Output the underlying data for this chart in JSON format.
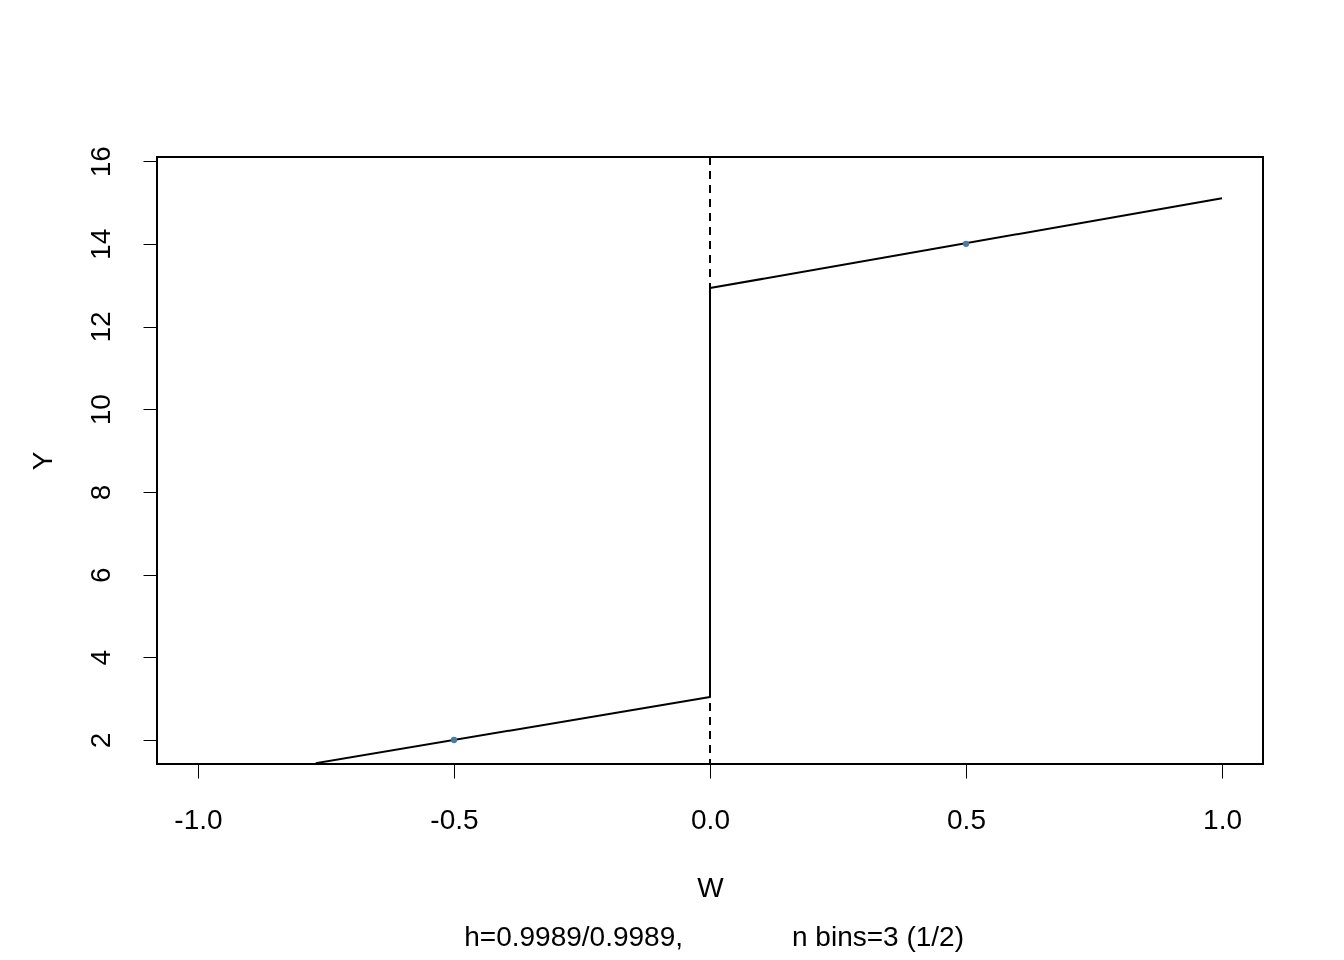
{
  "chart_data": {
    "type": "line",
    "xlabel": "W",
    "ylabel": "Y",
    "xlim": [
      -1.08,
      1.08
    ],
    "xticks": [
      {
        "value": -1,
        "label": "-1.0"
      },
      {
        "value": -0.5,
        "label": "-0.5"
      },
      {
        "value": 0,
        "label": "0.0"
      },
      {
        "value": 0.5,
        "label": "0.5"
      },
      {
        "value": 1,
        "label": "1.0"
      }
    ],
    "ylim": [
      1.42,
      16.1
    ],
    "yticks": [
      2,
      4,
      6,
      8,
      10,
      12,
      14,
      16
    ],
    "grid": false,
    "series": [
      {
        "color": "#000000",
        "x": [
          -0.77,
          0,
          0,
          1
        ],
        "values": [
          1.44,
          3.04,
          12.93,
          15.1
        ]
      },
      {
        "type": "scatter",
        "color": "#4a7ba7",
        "x": [
          -0.5,
          0.5
        ],
        "values": [
          2,
          14
        ]
      }
    ],
    "ref_lines": [
      {
        "axis": "x",
        "value": 0,
        "color": "#000000",
        "line_style": "dashed"
      }
    ],
    "annotations": [
      "h=0.9989/0.9989,",
      "n bins=3 (1/2)"
    ]
  }
}
